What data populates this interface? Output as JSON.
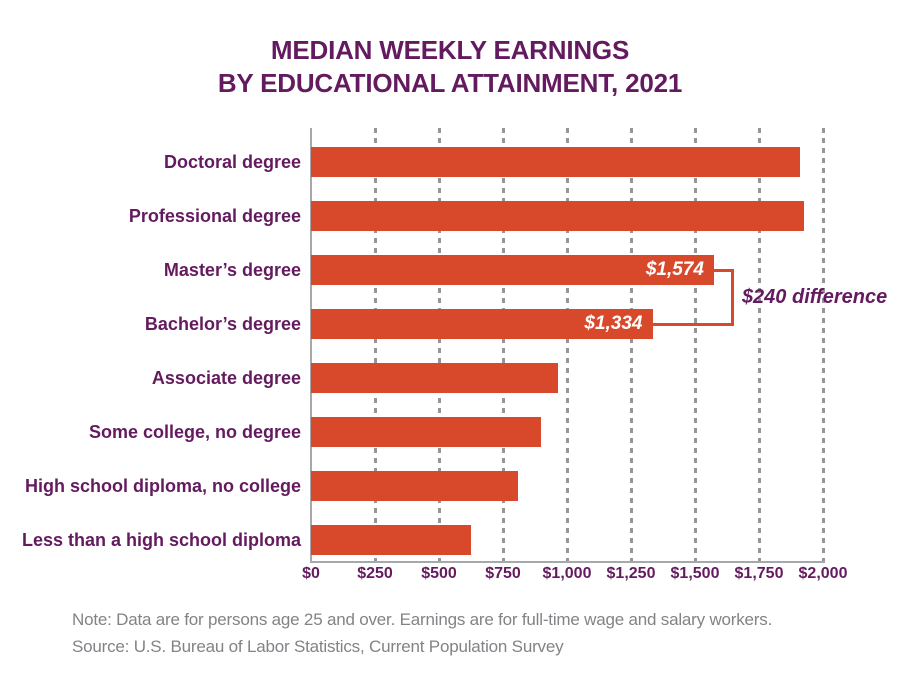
{
  "title": {
    "line1": "MEDIAN WEEKLY EARNINGS",
    "line2": "BY EDUCATIONAL ATTAINMENT, 2021"
  },
  "chart_data": {
    "type": "bar",
    "orientation": "horizontal",
    "title": "MEDIAN WEEKLY EARNINGS BY EDUCATIONAL ATTAINMENT, 2021",
    "categories": [
      "Doctoral degree",
      "Professional degree",
      "Master’s degree",
      "Bachelor’s degree",
      "Associate degree",
      "Some college, no degree",
      "High school diploma, no college",
      "Less than a high school diploma"
    ],
    "values": [
      1909,
      1924,
      1574,
      1334,
      963,
      899,
      809,
      626
    ],
    "value_labels": [
      "",
      "",
      "$1,574",
      "$1,334",
      "",
      "",
      "",
      ""
    ],
    "x_ticks": [
      "$0",
      "$250",
      "$500",
      "$750",
      "$1,000",
      "$1,250",
      "$1,500",
      "$1,750",
      "$2,000"
    ],
    "x_tick_values": [
      0,
      250,
      500,
      750,
      1000,
      1250,
      1500,
      1750,
      2000
    ],
    "xlim": [
      0,
      2000
    ],
    "grid": "vertical-dashed",
    "legend": "none",
    "annotation": {
      "text": "$240 difference",
      "from_category": "Master’s degree",
      "to_category": "Bachelor’s degree",
      "from_index": 2,
      "to_index": 3
    },
    "colors": {
      "bar": "#d8482a",
      "text_purple": "#641a5f",
      "value_label": "#ffffff",
      "grid": "#969696",
      "axis": "#a6a8ab",
      "note": "#818387"
    }
  },
  "footer": {
    "note": "Note: Data are for persons age 25 and over. Earnings are for full-time wage and salary workers.",
    "source": "Source: U.S. Bureau of Labor Statistics, Current Population Survey"
  }
}
